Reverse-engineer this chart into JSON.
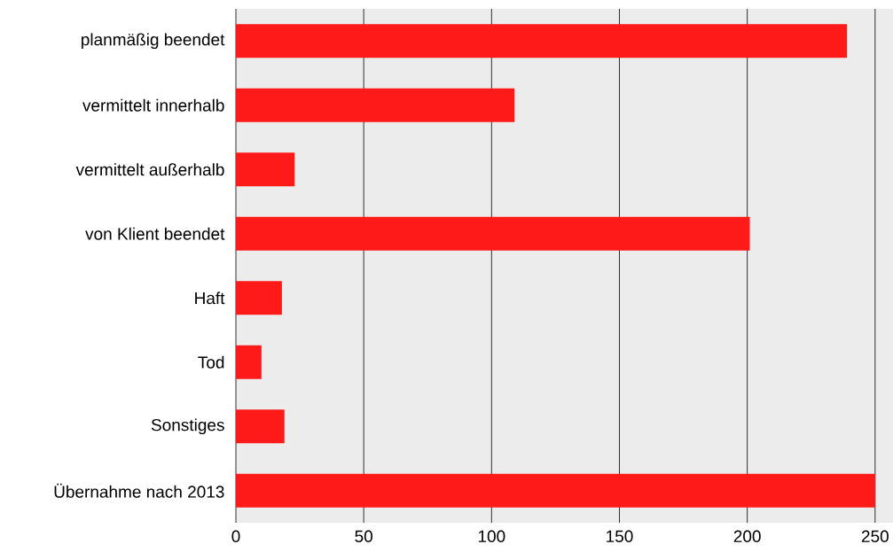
{
  "chart_data": {
    "type": "bar",
    "orientation": "horizontal",
    "categories": [
      "planmäßig beendet",
      "vermittelt innerhalb",
      "vermittelt außerhalb",
      "von Klient beendet",
      "Haft",
      "Tod",
      "Sonstiges",
      "Übernahme nach 2013"
    ],
    "values": [
      239,
      109,
      23,
      201,
      18,
      10,
      19,
      250
    ],
    "color": "#ff1a1a",
    "xlim": [
      0,
      257
    ],
    "xticks": [
      0,
      50,
      100,
      150,
      200,
      250
    ],
    "grid": "x"
  }
}
